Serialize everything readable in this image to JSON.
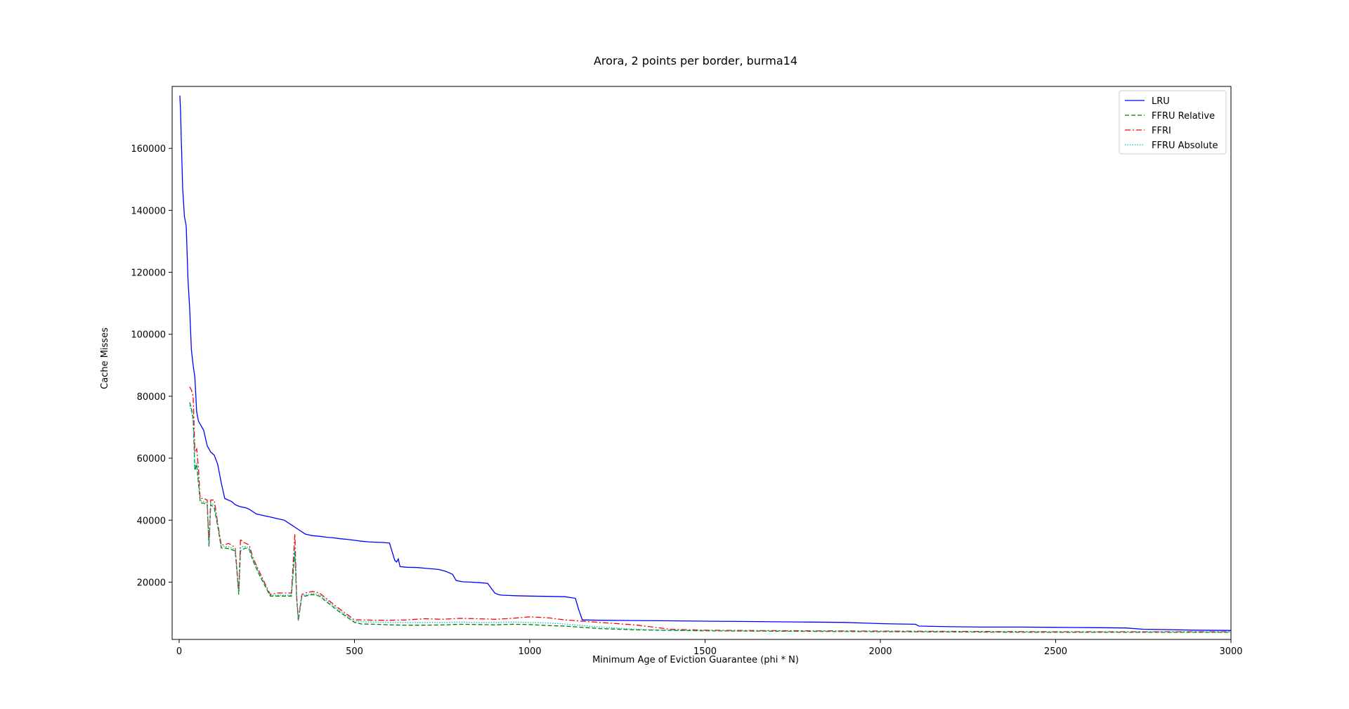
{
  "chart_data": {
    "type": "line",
    "title": "Arora, 2 points per border, burma14",
    "xlabel": "Minimum Age of Eviction Guarantee (phi * N)",
    "ylabel": "Cache Misses",
    "xlim": [
      -20,
      3000
    ],
    "ylim": [
      1500,
      180000
    ],
    "x_ticks": [
      0,
      500,
      1000,
      1500,
      2000,
      2500,
      3000
    ],
    "y_ticks": [
      20000,
      40000,
      60000,
      80000,
      100000,
      120000,
      140000,
      160000
    ],
    "grid": false,
    "legend_position": "top-right",
    "series": [
      {
        "name": "LRU",
        "color": "#0000ff",
        "dash": "solid",
        "x": [
          2,
          4,
          6,
          8,
          10,
          15,
          20,
          25,
          30,
          35,
          40,
          45,
          50,
          55,
          60,
          65,
          70,
          80,
          90,
          100,
          110,
          120,
          130,
          140,
          150,
          160,
          170,
          180,
          190,
          200,
          220,
          240,
          260,
          280,
          300,
          320,
          340,
          360,
          380,
          400,
          420,
          440,
          460,
          480,
          500,
          520,
          540,
          560,
          580,
          600,
          615,
          620,
          625,
          630,
          640,
          650,
          680,
          700,
          720,
          740,
          760,
          780,
          790,
          800,
          810,
          830,
          860,
          880,
          900,
          910,
          920,
          940,
          960,
          1000,
          1050,
          1100,
          1130,
          1140,
          1150,
          1200,
          1300,
          1400,
          1500,
          1600,
          1700,
          1800,
          1900,
          1950,
          2000,
          2050,
          2100,
          2110,
          2200,
          2300,
          2400,
          2500,
          2600,
          2700,
          2750,
          2800,
          2900,
          3000
        ],
        "values": [
          177000,
          172000,
          163000,
          155000,
          147000,
          138000,
          135000,
          118000,
          108000,
          95000,
          90000,
          86000,
          75000,
          72000,
          71000,
          70000,
          69000,
          64000,
          62000,
          61000,
          58000,
          52000,
          47000,
          46500,
          46000,
          45000,
          44500,
          44200,
          44000,
          43500,
          42000,
          41500,
          41000,
          40500,
          40000,
          38500,
          37000,
          35500,
          35000,
          34800,
          34500,
          34300,
          34000,
          33800,
          33500,
          33200,
          33000,
          32900,
          32800,
          32600,
          27000,
          26500,
          27500,
          25000,
          24900,
          24800,
          24700,
          24500,
          24300,
          24100,
          23500,
          22500,
          20500,
          20300,
          20100,
          20000,
          19800,
          19600,
          16500,
          16000,
          15800,
          15700,
          15600,
          15500,
          15400,
          15300,
          14800,
          11000,
          7800,
          7700,
          7600,
          7500,
          7400,
          7300,
          7200,
          7100,
          7000,
          6800,
          6600,
          6500,
          6400,
          5800,
          5600,
          5500,
          5500,
          5400,
          5300,
          5200,
          4800,
          4700,
          4500,
          4400
        ]
      },
      {
        "name": "FFRU Relative",
        "color": "#008000",
        "dash": "dashed",
        "x": [
          30,
          35,
          40,
          45,
          50,
          55,
          60,
          65,
          70,
          80,
          85,
          90,
          100,
          110,
          120,
          130,
          140,
          150,
          160,
          170,
          175,
          180,
          190,
          200,
          210,
          230,
          260,
          280,
          300,
          320,
          330,
          335,
          340,
          350,
          360,
          380,
          400,
          450,
          500,
          520,
          560,
          600,
          650,
          700,
          760,
          800,
          850,
          900,
          950,
          1000,
          1050,
          1100,
          1200,
          1300,
          1400,
          1500,
          1600,
          1800,
          2000,
          2200,
          2500,
          2800,
          3000
        ],
        "values": [
          78000,
          76000,
          73000,
          56000,
          58000,
          52000,
          46000,
          45500,
          45500,
          45000,
          31500,
          45000,
          44000,
          38000,
          31000,
          31000,
          30800,
          30500,
          30000,
          16000,
          30000,
          30500,
          31000,
          30500,
          27000,
          22000,
          15500,
          15500,
          15500,
          15500,
          30000,
          15000,
          7500,
          15500,
          15500,
          16000,
          15500,
          11000,
          7000,
          6500,
          6400,
          6200,
          6100,
          6100,
          6200,
          6400,
          6300,
          6200,
          6400,
          6300,
          6000,
          5800,
          5000,
          4600,
          4400,
          4300,
          4200,
          4100,
          4000,
          3900,
          3800,
          3800,
          3800
        ]
      },
      {
        "name": "FFRI",
        "color": "#ff0000",
        "dash": "dashdot",
        "x": [
          30,
          35,
          40,
          45,
          50,
          55,
          60,
          65,
          70,
          80,
          85,
          90,
          100,
          110,
          120,
          130,
          140,
          150,
          160,
          170,
          175,
          180,
          190,
          200,
          210,
          230,
          260,
          280,
          300,
          320,
          330,
          335,
          340,
          350,
          360,
          380,
          400,
          450,
          500,
          520,
          560,
          600,
          650,
          700,
          750,
          800,
          850,
          900,
          950,
          1000,
          1050,
          1100,
          1200,
          1300,
          1400,
          1500,
          1600,
          1800,
          2000,
          2200,
          2500,
          2800,
          3000
        ],
        "values": [
          83000,
          82000,
          80000,
          62000,
          63000,
          57000,
          47000,
          47000,
          47000,
          46500,
          32000,
          46500,
          46500,
          39000,
          32000,
          32000,
          32500,
          32000,
          31000,
          17000,
          34000,
          33000,
          32500,
          32000,
          28000,
          23000,
          16000,
          16500,
          16500,
          16500,
          35500,
          16000,
          8000,
          16000,
          16500,
          17000,
          16500,
          12000,
          7800,
          7800,
          7700,
          7700,
          7800,
          8200,
          8000,
          8300,
          8200,
          8000,
          8300,
          8800,
          8500,
          7800,
          7000,
          6200,
          4800,
          4500,
          4400,
          4300,
          4200,
          4100,
          4000,
          4000,
          4000
        ]
      },
      {
        "name": "FFRU Absolute",
        "color": "#00bfbf",
        "dash": "dotted",
        "x": [
          30,
          35,
          40,
          45,
          50,
          55,
          60,
          65,
          70,
          80,
          85,
          90,
          100,
          110,
          120,
          130,
          140,
          150,
          160,
          170,
          175,
          180,
          190,
          200,
          210,
          230,
          260,
          280,
          300,
          320,
          330,
          335,
          340,
          350,
          360,
          380,
          400,
          450,
          500,
          520,
          560,
          600,
          650,
          700,
          750,
          800,
          850,
          900,
          950,
          1000,
          1050,
          1100,
          1200,
          1300,
          1400,
          1500,
          1600,
          1800,
          2000,
          2200,
          2500,
          2800,
          3000
        ],
        "values": [
          77000,
          75000,
          72000,
          57000,
          58500,
          53000,
          46500,
          46000,
          46000,
          45500,
          31800,
          45500,
          45000,
          38500,
          31500,
          31500,
          31500,
          31000,
          30500,
          16500,
          31000,
          31500,
          31500,
          31000,
          27500,
          22500,
          15800,
          15800,
          15800,
          15800,
          31000,
          15500,
          7800,
          15800,
          15800,
          16300,
          16000,
          11500,
          7300,
          7200,
          7100,
          7000,
          7000,
          7000,
          7000,
          7100,
          7000,
          7000,
          7100,
          7000,
          6800,
          6500,
          5500,
          4800,
          4500,
          4400,
          4300,
          4200,
          4100,
          4000,
          3900,
          3900,
          3900
        ]
      }
    ]
  }
}
